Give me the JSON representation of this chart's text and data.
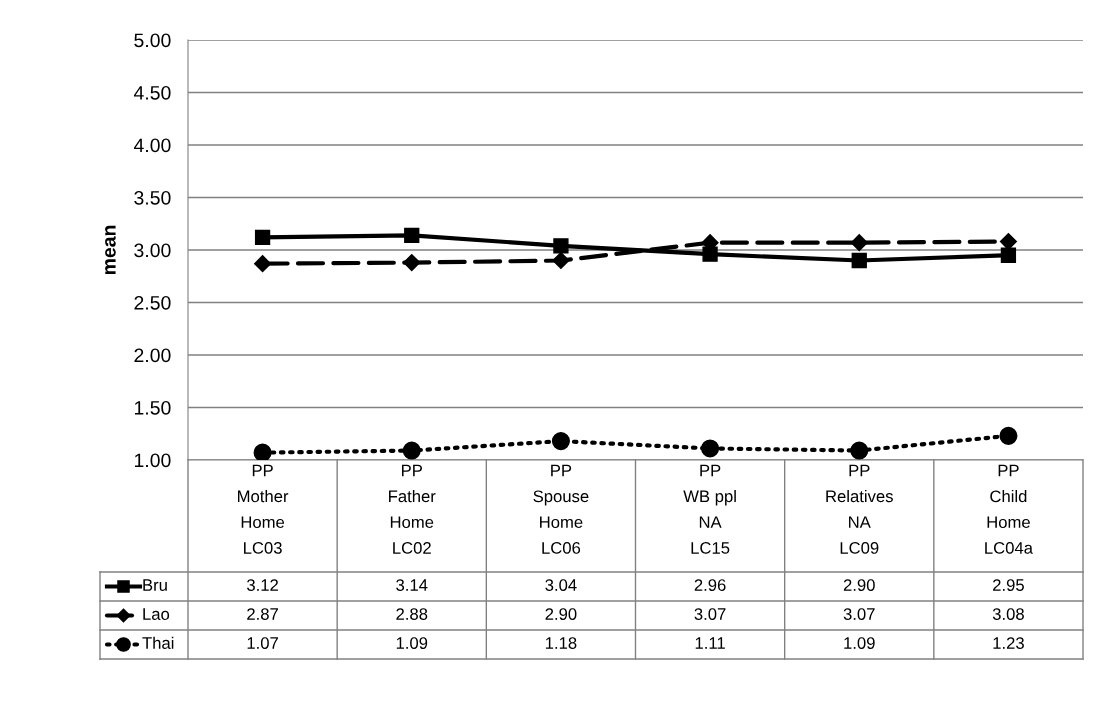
{
  "chart_data": {
    "type": "line",
    "ylabel": "mean",
    "categories": [
      "PP\nMother\nHome\nLC03",
      "PP\nFather\nHome\nLC02",
      "PP\nSpouse\nHome\nLC06",
      "PP\nWB ppl\nNA\nLC15",
      "PP\nRelatives\nNA\nLC09",
      "PP\nChild\nHome\nLC04a"
    ],
    "series": [
      {
        "name": "Bru",
        "color": "#000000",
        "marker": "square",
        "line_style": "solid",
        "values": [
          3.12,
          3.14,
          3.04,
          2.96,
          2.9,
          2.95
        ],
        "value_labels": [
          "3.12",
          "3.14",
          "3.04",
          "2.96",
          "2.90",
          "2.95"
        ]
      },
      {
        "name": "Lao",
        "color": "#000000",
        "marker": "diamond",
        "line_style": "dashed",
        "values": [
          2.87,
          2.88,
          2.9,
          3.07,
          3.07,
          3.08
        ],
        "value_labels": [
          "2.87",
          "2.88",
          "2.90",
          "3.07",
          "3.07",
          "3.08"
        ]
      },
      {
        "name": "Thai",
        "color": "#000000",
        "marker": "circle",
        "line_style": "dotted",
        "values": [
          1.07,
          1.09,
          1.18,
          1.11,
          1.09,
          1.23
        ],
        "value_labels": [
          "1.07",
          "1.09",
          "1.18",
          "1.11",
          "1.09",
          "1.23"
        ]
      }
    ],
    "ylim": [
      1.0,
      5.0
    ],
    "yticks": [
      {
        "value": 1.0,
        "label": "1.00"
      },
      {
        "value": 1.5,
        "label": "1.50"
      },
      {
        "value": 2.0,
        "label": "2.00"
      },
      {
        "value": 2.5,
        "label": "2.50"
      },
      {
        "value": 3.0,
        "label": "3.00"
      },
      {
        "value": 3.5,
        "label": "3.50"
      },
      {
        "value": 4.0,
        "label": "4.00"
      },
      {
        "value": 4.5,
        "label": "4.50"
      },
      {
        "value": 5.0,
        "label": "5.00"
      }
    ],
    "grid": "y",
    "legend": "bottom"
  }
}
